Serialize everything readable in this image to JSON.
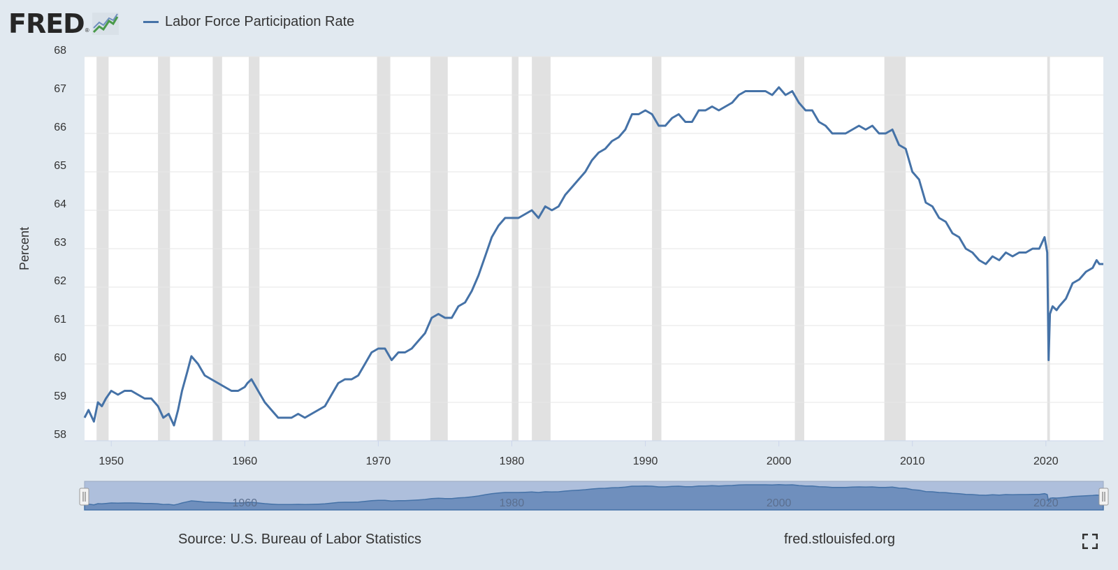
{
  "header": {
    "logo_text": "FRED",
    "logo_registered": "®",
    "logo_icon": "line-chart-icon",
    "legend_label": "Labor Force Participation Rate"
  },
  "footer": {
    "source": "Source: U.S. Bureau of Labor Statistics",
    "site": "fred.stlouisfed.org",
    "fullscreen_icon": "fullscreen-icon"
  },
  "colors": {
    "line": "#4572a7",
    "background": "#e1e9f0",
    "plot_background": "#ffffff",
    "recession": "#e1e1e1",
    "navigator_fill": "#aebfdc",
    "navigator_area": "#6f8fbd"
  },
  "chart_data": {
    "type": "line",
    "title": "",
    "xlabel": "",
    "ylabel": "Percent",
    "xlim": [
      1948.0,
      2024.3
    ],
    "ylim": [
      58,
      68
    ],
    "y_ticks": [
      58,
      59,
      60,
      61,
      62,
      63,
      64,
      65,
      66,
      67,
      68
    ],
    "x_ticks": [
      1950,
      1960,
      1970,
      1980,
      1990,
      2000,
      2010,
      2020
    ],
    "grid": true,
    "legend_position": "top-left",
    "recessions": [
      [
        1948.9,
        1949.8
      ],
      [
        1953.5,
        1954.4
      ],
      [
        1957.6,
        1958.3
      ],
      [
        1960.3,
        1961.1
      ],
      [
        1969.9,
        1970.9
      ],
      [
        1973.9,
        1975.2
      ],
      [
        1980.0,
        1980.5
      ],
      [
        1981.5,
        1982.9
      ],
      [
        1990.5,
        1991.2
      ],
      [
        2001.2,
        2001.9
      ],
      [
        2007.9,
        2009.5
      ],
      [
        2020.1,
        2020.3
      ]
    ],
    "navigator_ticks": [
      1960,
      1980,
      2000,
      2020
    ],
    "series": [
      {
        "name": "Labor Force Participation Rate",
        "x": [
          1948.0,
          1948.3,
          1948.7,
          1949.0,
          1949.3,
          1949.6,
          1950.0,
          1950.5,
          1951.0,
          1951.5,
          1952.0,
          1952.5,
          1953.0,
          1953.5,
          1953.9,
          1954.3,
          1954.7,
          1955.0,
          1955.3,
          1955.7,
          1956.0,
          1956.5,
          1957.0,
          1957.5,
          1958.0,
          1958.5,
          1959.0,
          1959.5,
          1960.0,
          1960.2,
          1960.5,
          1961.0,
          1961.5,
          1962.0,
          1962.5,
          1963.0,
          1963.5,
          1964.0,
          1964.5,
          1965.0,
          1965.5,
          1966.0,
          1966.5,
          1967.0,
          1967.5,
          1968.0,
          1968.5,
          1969.0,
          1969.5,
          1970.0,
          1970.5,
          1971.0,
          1971.5,
          1972.0,
          1972.5,
          1973.0,
          1973.5,
          1974.0,
          1974.5,
          1975.0,
          1975.5,
          1976.0,
          1976.5,
          1977.0,
          1977.5,
          1978.0,
          1978.5,
          1979.0,
          1979.5,
          1980.0,
          1980.5,
          1981.0,
          1981.5,
          1982.0,
          1982.5,
          1983.0,
          1983.5,
          1984.0,
          1984.5,
          1985.0,
          1985.5,
          1986.0,
          1986.5,
          1987.0,
          1987.5,
          1988.0,
          1988.5,
          1989.0,
          1989.5,
          1990.0,
          1990.5,
          1991.0,
          1991.5,
          1992.0,
          1992.5,
          1993.0,
          1993.5,
          1994.0,
          1994.5,
          1995.0,
          1995.5,
          1996.0,
          1996.5,
          1997.0,
          1997.5,
          1998.0,
          1998.5,
          1999.0,
          1999.5,
          2000.0,
          2000.5,
          2001.0,
          2001.5,
          2002.0,
          2002.5,
          2003.0,
          2003.5,
          2004.0,
          2004.5,
          2005.0,
          2005.5,
          2006.0,
          2006.5,
          2007.0,
          2007.5,
          2008.0,
          2008.5,
          2009.0,
          2009.5,
          2010.0,
          2010.5,
          2011.0,
          2011.5,
          2012.0,
          2012.5,
          2013.0,
          2013.5,
          2014.0,
          2014.5,
          2015.0,
          2015.5,
          2016.0,
          2016.5,
          2017.0,
          2017.5,
          2018.0,
          2018.5,
          2019.0,
          2019.5,
          2019.9,
          2020.1,
          2020.2,
          2020.3,
          2020.5,
          2020.8,
          2021.0,
          2021.5,
          2022.0,
          2022.5,
          2023.0,
          2023.5,
          2023.8,
          2024.0,
          2024.3
        ],
        "y": [
          58.6,
          58.8,
          58.5,
          59.0,
          58.9,
          59.1,
          59.3,
          59.2,
          59.3,
          59.3,
          59.2,
          59.1,
          59.1,
          58.9,
          58.6,
          58.7,
          58.4,
          58.8,
          59.3,
          59.8,
          60.2,
          60.0,
          59.7,
          59.6,
          59.5,
          59.4,
          59.3,
          59.3,
          59.4,
          59.5,
          59.6,
          59.3,
          59.0,
          58.8,
          58.6,
          58.6,
          58.6,
          58.7,
          58.6,
          58.7,
          58.8,
          58.9,
          59.2,
          59.5,
          59.6,
          59.6,
          59.7,
          60.0,
          60.3,
          60.4,
          60.4,
          60.1,
          60.3,
          60.3,
          60.4,
          60.6,
          60.8,
          61.2,
          61.3,
          61.2,
          61.2,
          61.5,
          61.6,
          61.9,
          62.3,
          62.8,
          63.3,
          63.6,
          63.8,
          63.8,
          63.8,
          63.9,
          64.0,
          63.8,
          64.1,
          64.0,
          64.1,
          64.4,
          64.6,
          64.8,
          65.0,
          65.3,
          65.5,
          65.6,
          65.8,
          65.9,
          66.1,
          66.5,
          66.5,
          66.6,
          66.5,
          66.2,
          66.2,
          66.4,
          66.5,
          66.3,
          66.3,
          66.6,
          66.6,
          66.7,
          66.6,
          66.7,
          66.8,
          67.0,
          67.1,
          67.1,
          67.1,
          67.1,
          67.0,
          67.2,
          67.0,
          67.1,
          66.8,
          66.6,
          66.6,
          66.3,
          66.2,
          66.0,
          66.0,
          66.0,
          66.1,
          66.2,
          66.1,
          66.2,
          66.0,
          66.0,
          66.1,
          65.7,
          65.6,
          65.0,
          64.8,
          64.2,
          64.1,
          63.8,
          63.7,
          63.4,
          63.3,
          63.0,
          62.9,
          62.7,
          62.6,
          62.8,
          62.7,
          62.9,
          62.8,
          62.9,
          62.9,
          63.0,
          63.0,
          63.3,
          62.9,
          60.1,
          61.3,
          61.5,
          61.4,
          61.5,
          61.7,
          62.1,
          62.2,
          62.4,
          62.5,
          62.7,
          62.6,
          62.6
        ]
      }
    ]
  }
}
